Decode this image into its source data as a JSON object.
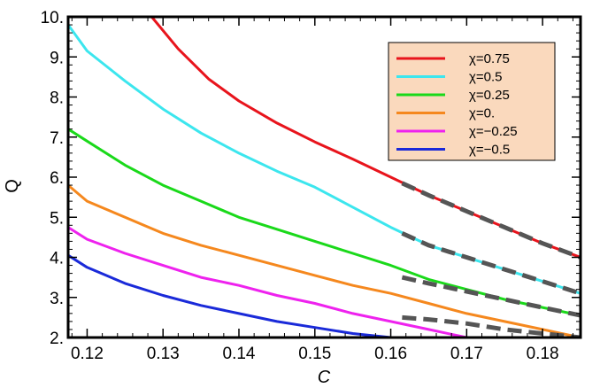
{
  "chart_data": {
    "type": "line",
    "xlabel": "C",
    "ylabel": "Q",
    "xlim": [
      0.1175,
      0.185
    ],
    "ylim": [
      2.0,
      10.0
    ],
    "x_ticks": [
      0.12,
      0.13,
      0.14,
      0.15,
      0.16,
      0.17,
      0.18
    ],
    "x_tick_labels": [
      "0.12",
      "0.13",
      "0.14",
      "0.15",
      "0.16",
      "0.17",
      "0.18"
    ],
    "y_ticks": [
      2,
      3,
      4,
      5,
      6,
      7,
      8,
      9,
      10
    ],
    "y_tick_labels": [
      "2.",
      "3.",
      "4.",
      "5.",
      "6.",
      "7.",
      "8.",
      "9.",
      "10."
    ],
    "grid": false,
    "legend_position": "top-right",
    "series": [
      {
        "name": "χ=0.75",
        "color": "#e8141c",
        "x": [
          0.1285,
          0.132,
          0.136,
          0.14,
          0.145,
          0.15,
          0.155,
          0.16,
          0.165,
          0.17,
          0.175,
          0.18,
          0.185
        ],
        "y": [
          10.0,
          9.2,
          8.45,
          7.9,
          7.35,
          6.88,
          6.45,
          6.0,
          5.55,
          5.15,
          4.75,
          4.35,
          4.0
        ]
      },
      {
        "name": "χ=0.5",
        "color": "#3ce6ee",
        "x": [
          0.1175,
          0.12,
          0.125,
          0.13,
          0.135,
          0.14,
          0.145,
          0.15,
          0.155,
          0.16,
          0.165,
          0.17,
          0.175,
          0.18,
          0.185
        ],
        "y": [
          9.8,
          9.15,
          8.4,
          7.7,
          7.1,
          6.6,
          6.15,
          5.75,
          5.25,
          4.75,
          4.3,
          4.0,
          3.7,
          3.4,
          3.1
        ]
      },
      {
        "name": "χ=0.25",
        "color": "#1ad91a",
        "x": [
          0.1175,
          0.12,
          0.125,
          0.13,
          0.135,
          0.14,
          0.145,
          0.15,
          0.155,
          0.16,
          0.165,
          0.17,
          0.175,
          0.18,
          0.185
        ],
        "y": [
          7.2,
          6.9,
          6.3,
          5.8,
          5.4,
          5.0,
          4.7,
          4.4,
          4.1,
          3.8,
          3.45,
          3.2,
          2.95,
          2.75,
          2.55
        ]
      },
      {
        "name": "χ=0.",
        "color": "#f5881e",
        "x": [
          0.1175,
          0.12,
          0.125,
          0.13,
          0.135,
          0.14,
          0.145,
          0.15,
          0.155,
          0.16,
          0.165,
          0.17,
          0.175,
          0.18,
          0.185
        ],
        "y": [
          5.8,
          5.4,
          5.0,
          4.6,
          4.3,
          4.05,
          3.8,
          3.55,
          3.3,
          3.1,
          2.85,
          2.6,
          2.4,
          2.2,
          2.0
        ]
      },
      {
        "name": "χ=−0.25",
        "color": "#ee22ee",
        "x": [
          0.1175,
          0.12,
          0.125,
          0.13,
          0.135,
          0.14,
          0.145,
          0.15,
          0.155,
          0.16,
          0.165,
          0.17
        ],
        "y": [
          4.75,
          4.45,
          4.1,
          3.8,
          3.5,
          3.3,
          3.05,
          2.85,
          2.6,
          2.4,
          2.2,
          2.0
        ]
      },
      {
        "name": "χ=−0.5",
        "color": "#1a2ad9",
        "x": [
          0.1175,
          0.12,
          0.125,
          0.13,
          0.135,
          0.14,
          0.145,
          0.15,
          0.155,
          0.16
        ],
        "y": [
          4.05,
          3.75,
          3.35,
          3.05,
          2.8,
          2.6,
          2.4,
          2.25,
          2.1,
          2.0
        ]
      }
    ],
    "dashed_overlays": [
      {
        "color": "#555555",
        "x": [
          0.1615,
          0.165,
          0.17,
          0.175,
          0.18,
          0.185
        ],
        "y": [
          5.85,
          5.55,
          5.15,
          4.75,
          4.35,
          4.0
        ]
      },
      {
        "color": "#555555",
        "x": [
          0.1615,
          0.165,
          0.17,
          0.175,
          0.18,
          0.185
        ],
        "y": [
          4.6,
          4.3,
          4.0,
          3.7,
          3.4,
          3.1
        ]
      },
      {
        "color": "#555555",
        "x": [
          0.1615,
          0.165,
          0.17,
          0.175,
          0.18,
          0.185
        ],
        "y": [
          3.5,
          3.35,
          3.15,
          2.95,
          2.75,
          2.55
        ]
      },
      {
        "color": "#555555",
        "x": [
          0.1615,
          0.165,
          0.17,
          0.175,
          0.18,
          0.185
        ],
        "y": [
          2.5,
          2.45,
          2.35,
          2.2,
          2.1,
          2.0
        ]
      }
    ],
    "legend_background": "#fad9bd"
  }
}
